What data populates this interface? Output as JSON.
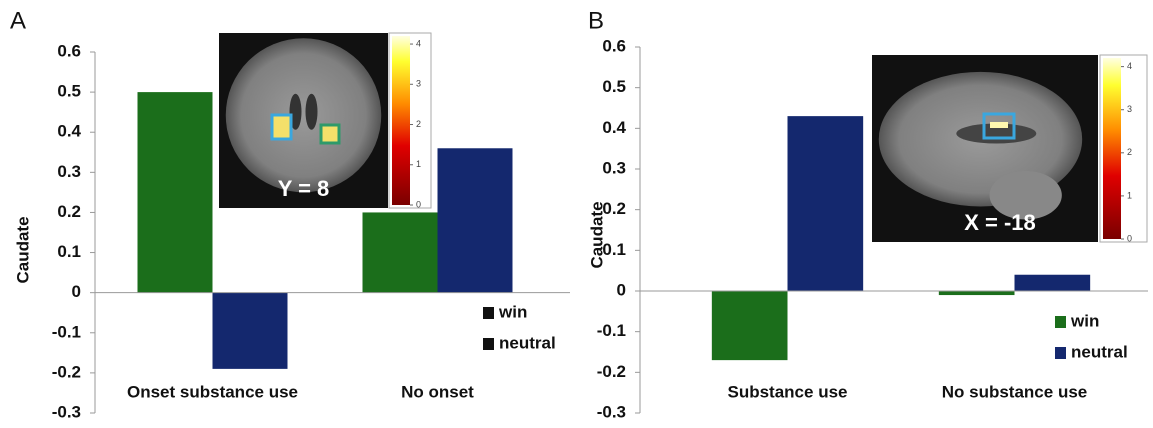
{
  "chart_data": [
    {
      "type": "bar",
      "panel_label": "A",
      "ylabel": "Caudate",
      "categories": [
        "Onset substance use",
        "No onset"
      ],
      "series": [
        {
          "name": "win",
          "color": "#1b6e1b",
          "values": [
            0.5,
            0.2
          ]
        },
        {
          "name": "neutral",
          "color": "#14286e",
          "values": [
            -0.19,
            0.36
          ]
        }
      ],
      "legend_marker_color": "#111",
      "ylim": [
        -0.3,
        0.6
      ],
      "yticks": [
        -0.3,
        -0.2,
        -0.1,
        0,
        0.1,
        0.2,
        0.3,
        0.4,
        0.5,
        0.6
      ],
      "inset_label": "Y = 8",
      "colorbar_lim": [
        0,
        4.2
      ],
      "colorbar_ticks": [
        0,
        1,
        2,
        3,
        4
      ]
    },
    {
      "type": "bar",
      "panel_label": "B",
      "ylabel": "Caudate",
      "categories": [
        "Substance use",
        "No substance use"
      ],
      "series": [
        {
          "name": "win",
          "color": "#1b6e1b",
          "values": [
            -0.17,
            -0.01
          ]
        },
        {
          "name": "neutral",
          "color": "#14286e",
          "values": [
            0.43,
            0.04
          ]
        }
      ],
      "legend_marker_color": null,
      "ylim": [
        -0.3,
        0.6
      ],
      "yticks": [
        -0.3,
        -0.2,
        -0.1,
        0,
        0.1,
        0.2,
        0.3,
        0.4,
        0.5,
        0.6
      ],
      "inset_label": "X = -18",
      "colorbar_lim": [
        0,
        4.2
      ],
      "colorbar_ticks": [
        0,
        1,
        2,
        3,
        4
      ]
    }
  ]
}
